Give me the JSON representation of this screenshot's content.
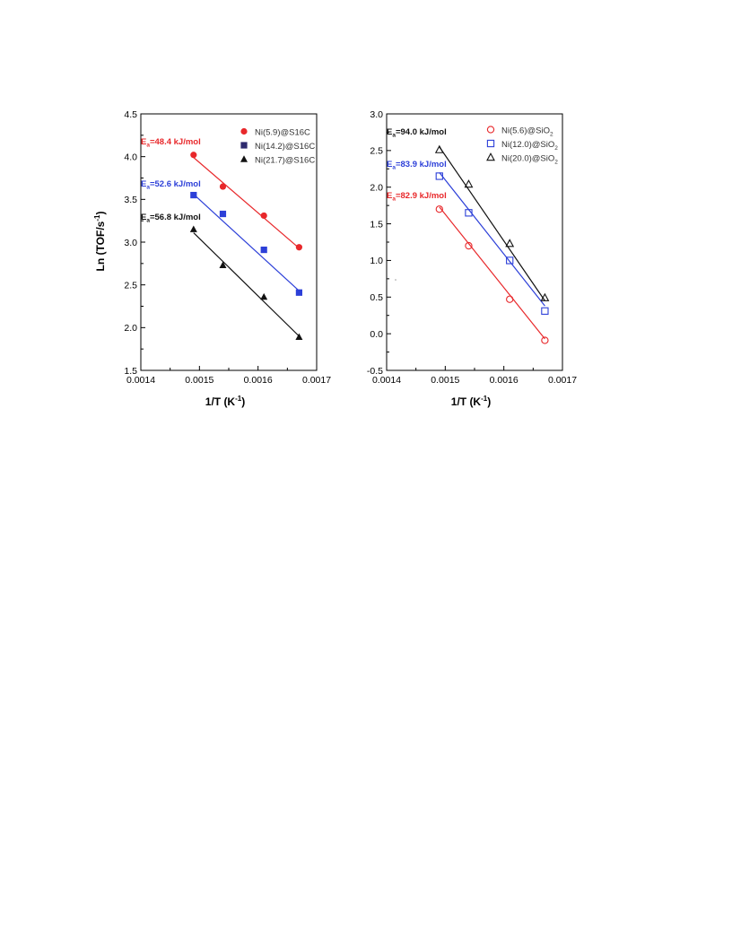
{
  "figure": {
    "ylabel_main": "Ln (TOF/s",
    "ylabel_sup": "-1",
    "ylabel_close": ")"
  },
  "chart_data": [
    {
      "type": "scatter",
      "xlabel_main": "1/T (K",
      "xlabel_sup": "-1",
      "xlabel_close": ")",
      "xlim": [
        0.0014,
        0.0017
      ],
      "ylim": [
        1.5,
        4.5
      ],
      "x_ticks": [
        "0.0014",
        "0.0015",
        "0.0016",
        "0.0017"
      ],
      "y_ticks": [
        "1.5",
        "2.0",
        "2.5",
        "3.0",
        "3.5",
        "4.0",
        "4.5"
      ],
      "legend_position": "top-right",
      "series": [
        {
          "name": "Ni(5.9)@S16C",
          "color": "#e8282b",
          "marker": "filled-circle",
          "x": [
            0.00149,
            0.00154,
            0.00161,
            0.00167
          ],
          "y": [
            4.02,
            3.65,
            3.31,
            2.94
          ],
          "fit_y": [
            3.99,
            2.93
          ],
          "annotation_sub": "a",
          "annotation_rest": "=48.4 kJ/mol"
        },
        {
          "name": "Ni(14.2)@S16C",
          "color": "#2c3fd8",
          "legend_color": "#2e2a6e",
          "marker": "filled-square",
          "x": [
            0.00149,
            0.00154,
            0.00161,
            0.00167
          ],
          "y": [
            3.55,
            3.33,
            2.91,
            2.41
          ],
          "fit_y": [
            3.56,
            2.43
          ],
          "annotation_sub": "a",
          "annotation_rest": "=52.6 kJ/mol"
        },
        {
          "name": "Ni(21.7)@S16C",
          "color": "#111111",
          "marker": "filled-triangle",
          "x": [
            0.00149,
            0.00154,
            0.00161,
            0.00167
          ],
          "y": [
            3.15,
            2.73,
            2.36,
            1.89
          ],
          "fit_y": [
            3.11,
            1.9
          ],
          "annotation_sub": "a",
          "annotation_rest": "=56.8 kJ/mol"
        }
      ]
    },
    {
      "type": "scatter",
      "xlabel_main": "1/T (K",
      "xlabel_sup": "-1",
      "xlabel_close": ")",
      "xlim": [
        0.0014,
        0.0017
      ],
      "ylim": [
        -0.5,
        3.0
      ],
      "x_ticks": [
        "0.0014",
        "0.0015",
        "0.0016",
        "0.0017"
      ],
      "y_ticks": [
        "-0.5",
        "0.0",
        "0.5",
        "1.0",
        "1.5",
        "2.0",
        "2.5",
        "3.0"
      ],
      "legend_position": "top-right",
      "series": [
        {
          "name": "Ni(5.6)@SiO",
          "name_sub": "2",
          "color": "#e8282b",
          "marker": "open-circle",
          "x": [
            0.00149,
            0.00154,
            0.00161,
            0.00167
          ],
          "y": [
            1.7,
            1.2,
            0.47,
            -0.09
          ],
          "fit_y": [
            1.73,
            -0.07
          ],
          "annotation_sub": "a",
          "annotation_rest": "=82.9 kJ/mol"
        },
        {
          "name": "Ni(12.0)@SiO",
          "name_sub": "2",
          "color": "#2c3fd8",
          "marker": "open-square",
          "x": [
            0.00149,
            0.00154,
            0.00161,
            0.00167
          ],
          "y": [
            2.15,
            1.65,
            1.0,
            0.31
          ],
          "fit_y": [
            2.2,
            0.38
          ],
          "annotation_sub": "a",
          "annotation_rest": "=83.9 kJ/mol"
        },
        {
          "name": "Ni(20.0)@SiO",
          "name_sub": "2",
          "color": "#111111",
          "marker": "open-triangle",
          "x": [
            0.00149,
            0.00154,
            0.00161,
            0.00167
          ],
          "y": [
            2.51,
            2.04,
            1.23,
            0.49
          ],
          "fit_y": [
            2.55,
            0.45
          ],
          "annotation_sub": "a",
          "annotation_rest": "=94.0 kJ/mol"
        }
      ]
    }
  ]
}
